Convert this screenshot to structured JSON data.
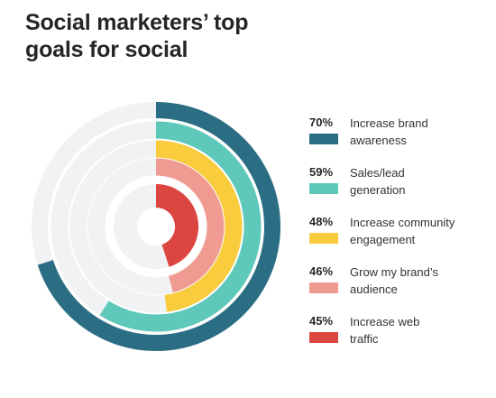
{
  "chart_data": {
    "type": "radial-bar",
    "title": "Social marketers’ top goals for social",
    "unit": "%",
    "max": 100,
    "series": [
      {
        "label": "Increase brand awareness",
        "label_lines": [
          "Increase brand",
          "awareness"
        ],
        "value": 70,
        "value_label": "70%",
        "color": "#2b6e84"
      },
      {
        "label": "Sales/lead generation",
        "label_lines": [
          "Sales/lead",
          "generation"
        ],
        "value": 59,
        "value_label": "59%",
        "color": "#5ec8bb"
      },
      {
        "label": "Increase community engagement",
        "label_lines": [
          "Increase community",
          "engagement"
        ],
        "value": 48,
        "value_label": "48%",
        "color": "#f8cc3d"
      },
      {
        "label": "Grow my brand’s audience",
        "label_lines": [
          "Grow my brand’s",
          "audience"
        ],
        "value": 46,
        "value_label": "46%",
        "color": "#f09b92"
      },
      {
        "label": "Increase web traffic",
        "label_lines": [
          "Increase web",
          "traffic"
        ],
        "value": 45,
        "value_label": "45%",
        "color": "#dc4640"
      }
    ],
    "track_color": "#f0f2f4",
    "legend_position": "right"
  }
}
